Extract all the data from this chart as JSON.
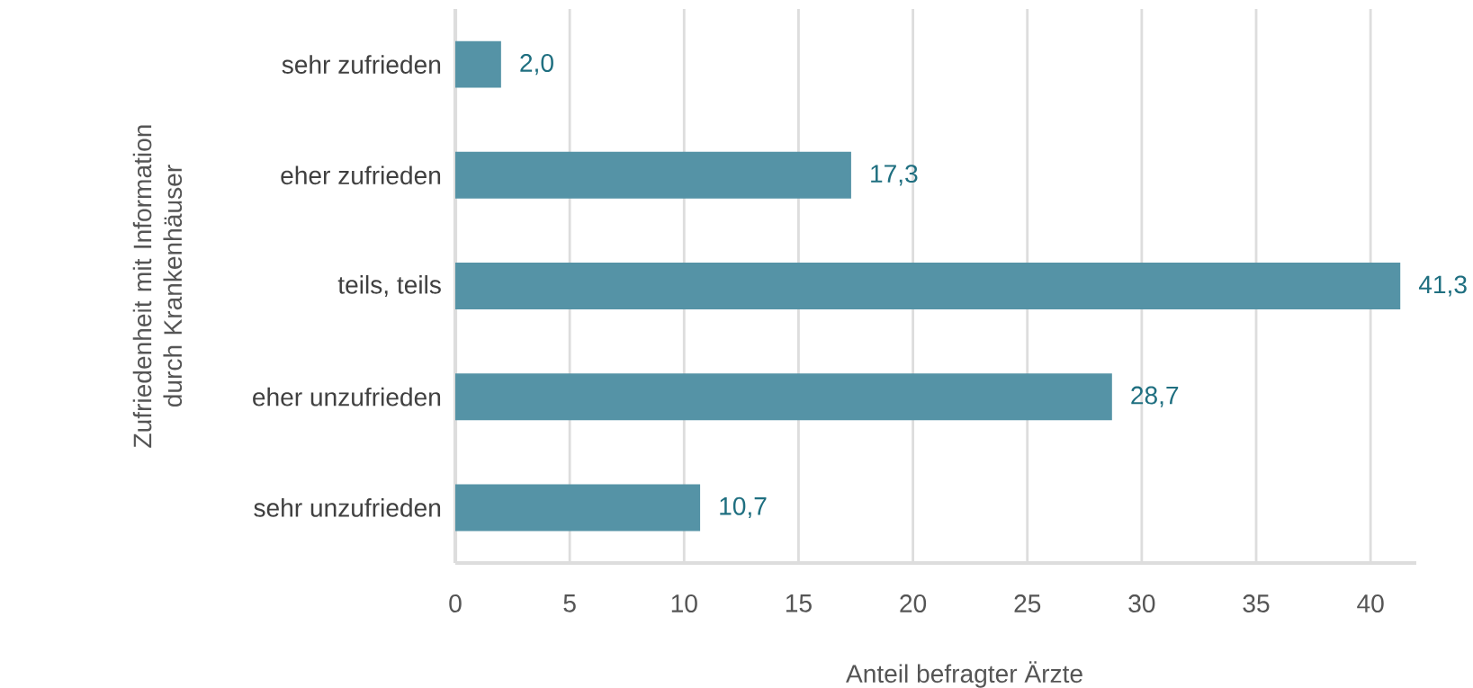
{
  "chart_data": {
    "type": "bar",
    "orientation": "horizontal",
    "xlabel": "Anteil befragter Ärzte",
    "ylabel": "Zufriedenheit mit Information durch Krankenhäuser",
    "categories": [
      "sehr zufrieden",
      "eher zufrieden",
      "teils, teils",
      "eher unzufrieden",
      "sehr unzufrieden"
    ],
    "values": [
      2.0,
      17.3,
      41.3,
      28.7,
      10.7
    ],
    "value_labels": [
      "2,0",
      "17,3",
      "41,3",
      "28,7",
      "10,7"
    ],
    "color": "#5593a6",
    "xlim": [
      0,
      42
    ],
    "xticks": [
      0,
      5,
      10,
      15,
      20,
      25,
      30,
      35,
      40
    ],
    "grid": "x"
  }
}
